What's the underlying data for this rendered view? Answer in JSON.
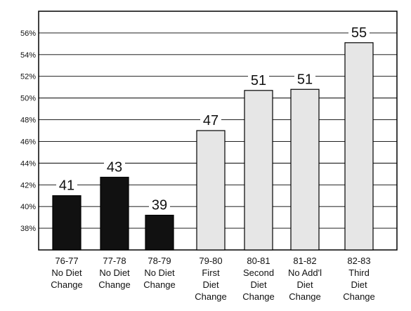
{
  "chart_data": {
    "type": "bar",
    "title": "",
    "xlabel": "",
    "ylabel": "",
    "ylim": [
      36,
      58
    ],
    "ytick_values": [
      38,
      40,
      42,
      44,
      46,
      48,
      50,
      52,
      54,
      56
    ],
    "ytick_labels": [
      "38%",
      "40%",
      "42%",
      "44%",
      "46%",
      "48%",
      "50%",
      "52%",
      "54%",
      "56%"
    ],
    "grid": true,
    "legend": "none",
    "categories": [
      [
        "76-77",
        "No Diet",
        "Change"
      ],
      [
        "77-78",
        "No Diet",
        "Change"
      ],
      [
        "78-79",
        "No Diet",
        "Change"
      ],
      [
        "79-80",
        "First",
        "Diet",
        "Change"
      ],
      [
        "80-81",
        "Second",
        "Diet",
        "Change"
      ],
      [
        "81-82",
        "No Add'l",
        "Diet",
        "Change"
      ],
      [
        "82-83",
        "Third",
        "Diet",
        "Change"
      ]
    ],
    "values": [
      41,
      42.7,
      39.2,
      47,
      50.7,
      50.8,
      55.1
    ],
    "data_labels": [
      "41",
      "43",
      "39",
      "47",
      "51",
      "51",
      "55"
    ],
    "bar_colors": [
      "#111111",
      "#111111",
      "#111111",
      "#e6e6e6",
      "#e6e6e6",
      "#e6e6e6",
      "#e6e6e6"
    ]
  }
}
